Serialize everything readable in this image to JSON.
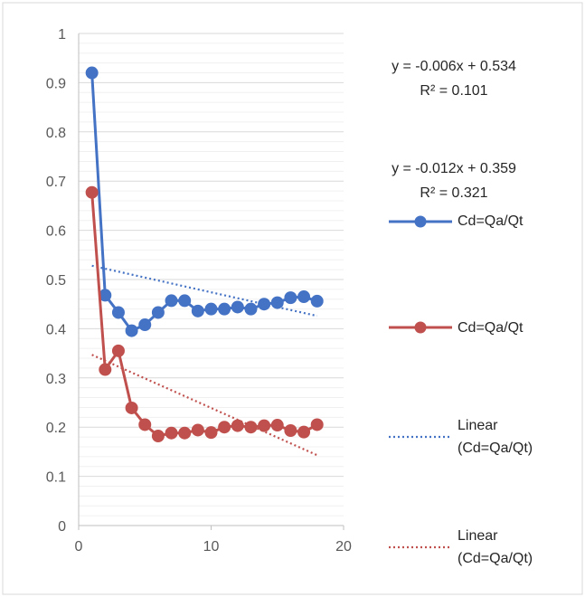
{
  "chart_data": {
    "type": "scatter",
    "xlim": [
      0,
      20
    ],
    "ylim": [
      0,
      1
    ],
    "x_ticks": [
      "0",
      "10",
      "20"
    ],
    "y_ticks": [
      "0",
      "0.1",
      "0.2",
      "0.3",
      "0.4",
      "0.5",
      "0.6",
      "0.7",
      "0.8",
      "0.9",
      "1"
    ],
    "grid": true,
    "legend_position": "right",
    "x": [
      1,
      2,
      3,
      4,
      5,
      6,
      7,
      8,
      9,
      10,
      11,
      12,
      13,
      14,
      15,
      16,
      17,
      18
    ],
    "series": [
      {
        "name": "Cd=Qa/Qt",
        "color": "#4472C4",
        "marker": "circle",
        "values": [
          0.92,
          0.468,
          0.433,
          0.396,
          0.408,
          0.433,
          0.457,
          0.457,
          0.436,
          0.44,
          0.44,
          0.444,
          0.44,
          0.45,
          0.453,
          0.463,
          0.465,
          0.456
        ]
      },
      {
        "name": "Cd=Qa/Qt",
        "color": "#C0504D",
        "marker": "circle",
        "values": [
          0.677,
          0.317,
          0.355,
          0.239,
          0.205,
          0.182,
          0.188,
          0.188,
          0.194,
          0.189,
          0.2,
          0.203,
          0.2,
          0.203,
          0.204,
          0.193,
          0.19,
          0.205
        ]
      }
    ],
    "trendlines": [
      {
        "name": "Linear (Cd=Qa/Qt)",
        "color": "#4472C4",
        "slope": -0.006,
        "intercept": 0.534,
        "x_range": [
          1,
          18
        ],
        "equation": "y = -0.006x + 0.534",
        "r2": "R² = 0.101"
      },
      {
        "name": "Linear (Cd=Qa/Qt)",
        "color": "#C0504D",
        "slope": -0.012,
        "intercept": 0.359,
        "x_range": [
          1,
          18
        ],
        "equation": "y = -0.012x + 0.359",
        "r2": "R² = 0.321"
      }
    ],
    "legend": [
      {
        "label": "Cd=Qa/Qt",
        "label_lines": [
          "Cd=Qa/Qt"
        ],
        "style": "line-marker",
        "color": "#4472C4"
      },
      {
        "label": "Cd=Qa/Qt",
        "label_lines": [
          "Cd=Qa/Qt"
        ],
        "style": "line-marker",
        "color": "#C0504D"
      },
      {
        "label": "Linear (Cd=Qa/Qt)",
        "label_lines": [
          "Linear",
          "(Cd=Qa/Qt)"
        ],
        "style": "dotted",
        "color": "#4472C4"
      },
      {
        "label": "Linear (Cd=Qa/Qt)",
        "label_lines": [
          "Linear",
          "(Cd=Qa/Qt)"
        ],
        "style": "dotted",
        "color": "#C0504D"
      }
    ]
  }
}
